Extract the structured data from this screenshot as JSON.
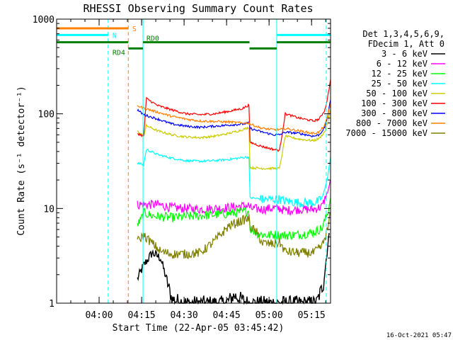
{
  "chart_data": {
    "type": "line",
    "title": "RHESSI Observing Summary Count Rates",
    "xlabel": "Start Time (22-Apr-05 03:45:42)",
    "ylabel": "Count Rate (s⁻¹ detector⁻¹)",
    "yscale": "log",
    "ylim": [
      1,
      1000
    ],
    "xlim_minutes": [
      -0.7,
      96
    ],
    "x_ticks": [
      {
        "label": "04:00",
        "minute": 14.3
      },
      {
        "label": "04:15",
        "minute": 29.3
      },
      {
        "label": "04:30",
        "minute": 44.3
      },
      {
        "label": "04:45",
        "minute": 59.3
      },
      {
        "label": "05:00",
        "minute": 74.3
      },
      {
        "label": "05:15",
        "minute": 89.3
      }
    ],
    "y_ticks": [
      {
        "label": "1",
        "value": 1
      },
      {
        "label": "10",
        "value": 10
      },
      {
        "label": "100",
        "value": 100
      },
      {
        "label": "1000",
        "value": 1000
      }
    ],
    "legend_header": [
      "Det 1,3,4,5,6,9,",
      "FDecim 1, Att 0"
    ],
    "legend_placement": "right",
    "series": [
      {
        "name": "3 - 6 keV",
        "color": "#000000",
        "points": [
          [
            27.8,
            1.8
          ],
          [
            30,
            2.5
          ],
          [
            33,
            3.4
          ],
          [
            36,
            3.0
          ],
          [
            40,
            1.1
          ],
          [
            45,
            1.0
          ],
          [
            50,
            1.0
          ],
          [
            55,
            1.0
          ],
          [
            59,
            1.0
          ],
          [
            62,
            1.2
          ],
          [
            67,
            1.0
          ],
          [
            72,
            1.0
          ],
          [
            77,
            1.0
          ],
          [
            82,
            1.0
          ],
          [
            87,
            1.0
          ],
          [
            91,
            1.0
          ],
          [
            93.5,
            1.6
          ],
          [
            95.5,
            5.5
          ]
        ]
      },
      {
        "name": "6 - 12 keV",
        "color": "#ff00ff",
        "points": [
          [
            27.8,
            11
          ],
          [
            30,
            11
          ],
          [
            35,
            11
          ],
          [
            40,
            10.2
          ],
          [
            45,
            10.0
          ],
          [
            50,
            9.8
          ],
          [
            55,
            10.0
          ],
          [
            60,
            10.2
          ],
          [
            65,
            10.6
          ],
          [
            67.2,
            10.8
          ],
          [
            67.6,
            10.0
          ],
          [
            72,
            9.8
          ],
          [
            76,
            10.1
          ],
          [
            78,
            10.0
          ],
          [
            80,
            9.5
          ],
          [
            85,
            9.8
          ],
          [
            90,
            9.8
          ],
          [
            93,
            10.5
          ],
          [
            95,
            15
          ],
          [
            96,
            20
          ]
        ]
      },
      {
        "name": "12 - 25 keV",
        "color": "#00ff00",
        "points": [
          [
            27.8,
            6.8
          ],
          [
            29,
            7.5
          ],
          [
            30,
            9.0
          ],
          [
            33,
            8.4
          ],
          [
            36,
            8.2
          ],
          [
            40,
            8.0
          ],
          [
            45,
            8.2
          ],
          [
            50,
            8.4
          ],
          [
            55,
            8.6
          ],
          [
            60,
            8.8
          ],
          [
            65,
            9.2
          ],
          [
            67.2,
            9.4
          ],
          [
            67.6,
            6.2
          ],
          [
            70,
            5.5
          ],
          [
            72,
            5.3
          ],
          [
            74,
            5.2
          ],
          [
            76,
            5.3
          ],
          [
            80,
            5.2
          ],
          [
            85,
            5.3
          ],
          [
            90,
            5.6
          ],
          [
            93,
            6.2
          ],
          [
            95,
            9
          ],
          [
            96,
            13
          ]
        ]
      },
      {
        "name": "25 - 50 keV",
        "color": "#00ffff",
        "points": [
          [
            27.8,
            30
          ],
          [
            30,
            29
          ],
          [
            31,
            42
          ],
          [
            35,
            37
          ],
          [
            40,
            34
          ],
          [
            45,
            32
          ],
          [
            50,
            31.5
          ],
          [
            55,
            32
          ],
          [
            60,
            33
          ],
          [
            65,
            34.5
          ],
          [
            67.2,
            35
          ],
          [
            67.6,
            13
          ],
          [
            72,
            12.5
          ],
          [
            76,
            12.5
          ],
          [
            78,
            12.5
          ],
          [
            80,
            12
          ],
          [
            85,
            11.5
          ],
          [
            90,
            11.5
          ],
          [
            92,
            12
          ],
          [
            93,
            13
          ],
          [
            94,
            16
          ],
          [
            95,
            22
          ],
          [
            96,
            35
          ]
        ]
      },
      {
        "name": "50 - 100 keV",
        "color": "#cccc00",
        "points": [
          [
            27.8,
            65
          ],
          [
            30,
            58
          ],
          [
            31,
            75
          ],
          [
            35,
            66
          ],
          [
            40,
            60
          ],
          [
            45,
            57
          ],
          [
            50,
            56
          ],
          [
            55,
            58
          ],
          [
            60,
            62
          ],
          [
            65,
            68
          ],
          [
            67.2,
            72
          ],
          [
            67.6,
            27
          ],
          [
            72,
            26.5
          ],
          [
            76,
            26.5
          ],
          [
            78,
            26.5
          ],
          [
            80,
            58
          ],
          [
            85,
            54
          ],
          [
            90,
            52
          ],
          [
            92,
            55
          ],
          [
            94,
            65
          ],
          [
            95,
            80
          ],
          [
            96,
            110
          ]
        ]
      },
      {
        "name": "100 - 300 keV",
        "color": "#ff0000",
        "points": [
          [
            27.8,
            62
          ],
          [
            30,
            58
          ],
          [
            31,
            145
          ],
          [
            35,
            122
          ],
          [
            40,
            110
          ],
          [
            45,
            100
          ],
          [
            50,
            98
          ],
          [
            55,
            100
          ],
          [
            60,
            106
          ],
          [
            65,
            114
          ],
          [
            67.2,
            124
          ],
          [
            67.6,
            50
          ],
          [
            72,
            45
          ],
          [
            76,
            42
          ],
          [
            78,
            41
          ],
          [
            80,
            100
          ],
          [
            85,
            90
          ],
          [
            90,
            84
          ],
          [
            92,
            88
          ],
          [
            94,
            110
          ],
          [
            95,
            150
          ],
          [
            96,
            230
          ]
        ]
      },
      {
        "name": "300 - 800 keV",
        "color": "#0000ff",
        "points": [
          [
            27.8,
            110
          ],
          [
            30,
            98
          ],
          [
            35,
            88
          ],
          [
            40,
            78
          ],
          [
            45,
            74
          ],
          [
            50,
            72
          ],
          [
            55,
            74
          ],
          [
            60,
            76
          ],
          [
            65,
            78
          ],
          [
            67.2,
            80
          ],
          [
            67.6,
            70
          ],
          [
            72,
            64
          ],
          [
            76,
            60
          ],
          [
            78,
            60
          ],
          [
            80,
            64
          ],
          [
            85,
            62
          ],
          [
            90,
            58
          ],
          [
            92,
            60
          ],
          [
            94,
            72
          ],
          [
            95,
            95
          ],
          [
            96,
            140
          ]
        ]
      },
      {
        "name": "800 - 7000 keV",
        "color": "#ff8000",
        "points": [
          [
            27.8,
            122
          ],
          [
            30,
            115
          ],
          [
            35,
            104
          ],
          [
            40,
            94
          ],
          [
            45,
            88
          ],
          [
            50,
            84
          ],
          [
            55,
            83
          ],
          [
            60,
            82
          ],
          [
            65,
            80
          ],
          [
            67.2,
            80
          ],
          [
            67.6,
            78
          ],
          [
            72,
            70
          ],
          [
            76,
            68
          ],
          [
            78,
            68
          ],
          [
            80,
            70
          ],
          [
            85,
            66
          ],
          [
            90,
            62
          ],
          [
            92,
            64
          ],
          [
            94,
            76
          ],
          [
            95,
            95
          ],
          [
            96,
            130
          ]
        ]
      },
      {
        "name": "7000 - 15000 keV",
        "color": "#808000",
        "points": [
          [
            27.8,
            4.5
          ],
          [
            30,
            5.2
          ],
          [
            33,
            4.3
          ],
          [
            36,
            3.5
          ],
          [
            40,
            3.3
          ],
          [
            45,
            3.3
          ],
          [
            50,
            3.4
          ],
          [
            55,
            4.5
          ],
          [
            60,
            6.5
          ],
          [
            65,
            7.5
          ],
          [
            67.2,
            7.8
          ],
          [
            67.6,
            6.5
          ],
          [
            70,
            5.5
          ],
          [
            72,
            4.3
          ],
          [
            76,
            4.2
          ],
          [
            78,
            4.4
          ],
          [
            80,
            3.5
          ],
          [
            85,
            3.4
          ],
          [
            90,
            3.4
          ],
          [
            93,
            4
          ],
          [
            95,
            6
          ],
          [
            96,
            9
          ]
        ]
      }
    ],
    "state_bars": [
      {
        "label": "S",
        "color": "#ff8000",
        "value": 800,
        "segments": [
          [
            -0.7,
            24.6
          ]
        ]
      },
      {
        "label": "N",
        "color": "#00ffff",
        "value": 680,
        "segments": [
          [
            -0.7,
            17.5
          ],
          [
            77,
            96
          ]
        ]
      },
      {
        "label": "RD0",
        "color": "#008000",
        "value": 570,
        "segments": [
          [
            -0.7,
            24.6
          ],
          [
            29.8,
            67.4
          ],
          [
            77,
            96
          ]
        ]
      },
      {
        "label": "RD4",
        "color": "#008000",
        "value": 490,
        "segments": [
          [
            24.6,
            29.8
          ],
          [
            67.4,
            77
          ]
        ]
      }
    ],
    "vertical_markers": [
      {
        "minute": -0.7,
        "color": "#00ffff",
        "style": "solid"
      },
      {
        "minute": 17.5,
        "color": "#00ffff",
        "style": "dashed"
      },
      {
        "minute": 24.6,
        "color": "#ff8000",
        "style": "dashed"
      },
      {
        "minute": 29.8,
        "color": "#00ffff",
        "style": "solid"
      },
      {
        "minute": 77.0,
        "color": "#00ffff",
        "style": "solid"
      },
      {
        "minute": 94.5,
        "color": "#00ffff",
        "style": "dashed"
      }
    ]
  },
  "timestamp": "16-Oct-2021 05:47"
}
